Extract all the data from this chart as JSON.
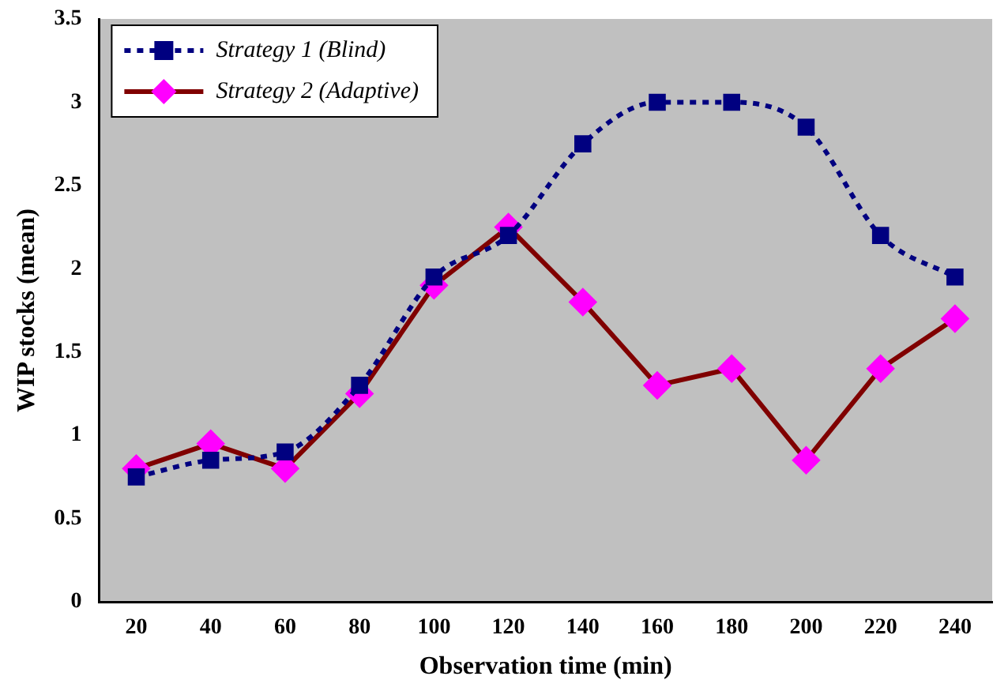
{
  "chart_data": {
    "type": "line",
    "xlabel": "Observation time (min)",
    "ylabel": "WIP stocks (mean)",
    "categories": [
      "20",
      "40",
      "60",
      "80",
      "100",
      "120",
      "140",
      "160",
      "180",
      "200",
      "220",
      "240"
    ],
    "series": [
      {
        "name": "Strategy 1 (Blind)",
        "color": "#000080",
        "marker": "square",
        "line_style": "dashed",
        "values": [
          0.75,
          0.85,
          0.9,
          1.3,
          1.95,
          2.2,
          2.75,
          3.0,
          3.0,
          2.85,
          2.2,
          1.95
        ]
      },
      {
        "name": "Strategy 2 (Adaptive)",
        "color": "#800000",
        "colors": [
          "#ff00ff",
          "#ff00ff",
          "#ff00ff",
          "#ff00ff",
          "#ff00ff",
          "#ff00ff",
          "#ff00ff",
          "#ff00ff",
          "#ff00ff",
          "#ff00ff",
          "#ff00ff",
          "#ff00ff"
        ],
        "marker": "diamond",
        "line_style": "solid",
        "values": [
          0.8,
          0.95,
          0.8,
          1.25,
          1.9,
          2.25,
          1.8,
          1.3,
          1.4,
          0.85,
          1.4,
          1.7
        ]
      }
    ],
    "ylim": [
      0,
      3.5
    ],
    "yticks": [
      0,
      0.5,
      1,
      1.5,
      2,
      2.5,
      3,
      3.5
    ],
    "grid": false,
    "legend": "top left"
  }
}
